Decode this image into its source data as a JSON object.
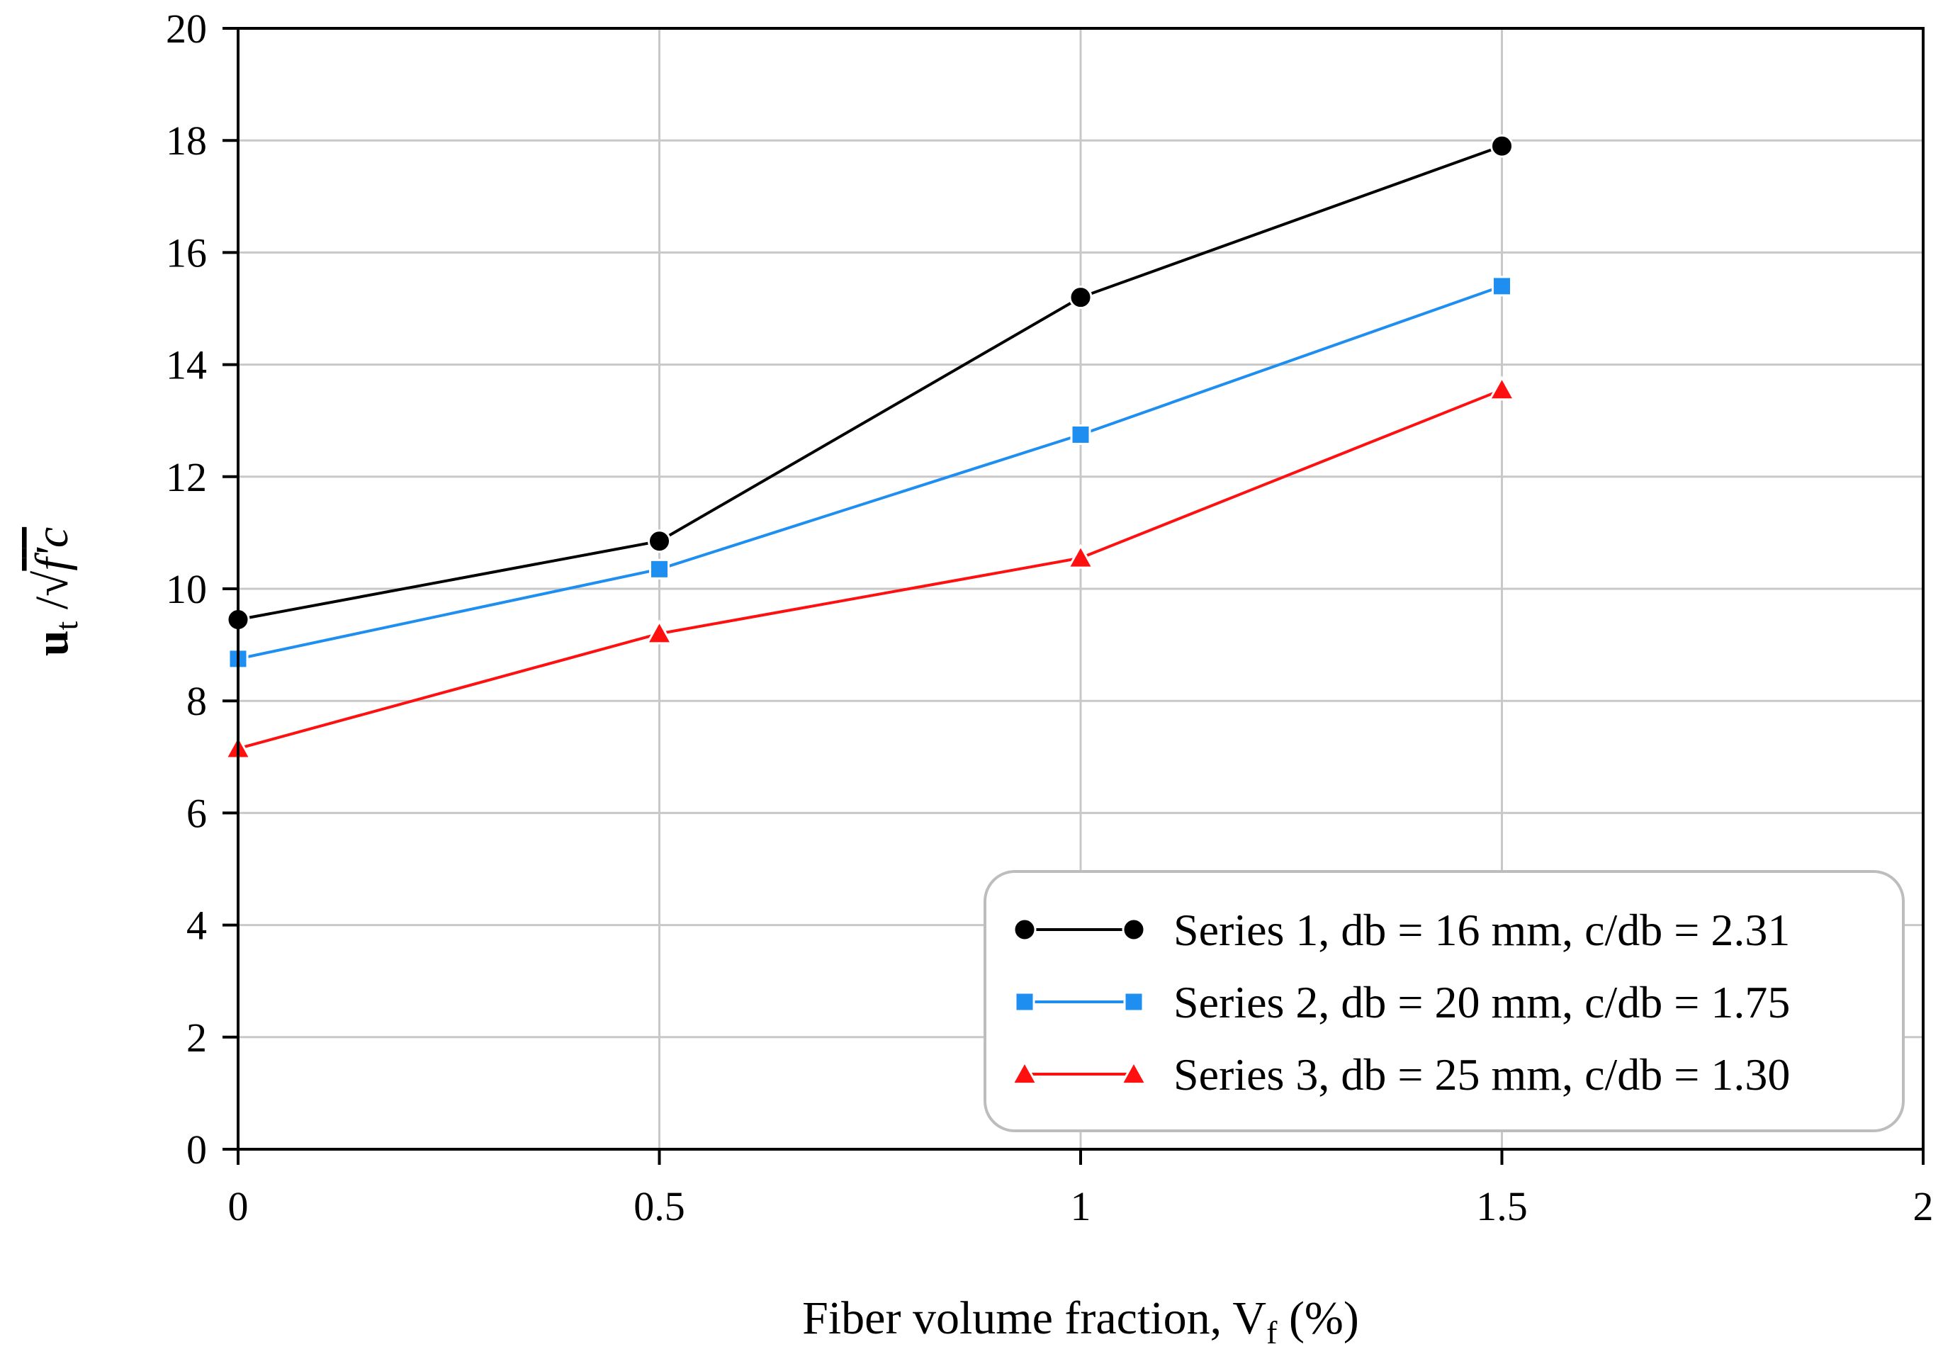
{
  "chart_data": {
    "type": "line",
    "title": "",
    "x": [
      0,
      0.5,
      1,
      1.5
    ],
    "xlabel": "Fiber volume fraction, Vf (%)",
    "xlabel_parts": {
      "main": "Fiber volume fraction, V",
      "sub": "f",
      "tail": " (%)"
    },
    "ylabel": "ut /√f'c",
    "ylabel_parts": {
      "u": "u",
      "t": "t",
      "slash": " /",
      "radical": "√",
      "f": "f",
      "c": "c"
    },
    "xlim": [
      0,
      2
    ],
    "ylim": [
      0,
      20
    ],
    "xticks": [
      0,
      0.5,
      1,
      1.5,
      2
    ],
    "xtick_labels": [
      "0",
      "0.5",
      "1",
      "1.5",
      "2"
    ],
    "yticks": [
      0,
      2,
      4,
      6,
      8,
      10,
      12,
      14,
      16,
      18,
      20
    ],
    "ytick_labels": [
      "0",
      "2",
      "4",
      "6",
      "8",
      "10",
      "12",
      "14",
      "16",
      "18",
      "20"
    ],
    "grid": true,
    "legend_position": "bottom-right",
    "series": [
      {
        "name": "Series 1, db = 16 mm, c/db = 2.31",
        "values": [
          9.45,
          10.85,
          15.2,
          17.9
        ],
        "color": "#000000",
        "marker": "circle"
      },
      {
        "name": "Series 2, db = 20 mm, c/db = 1.75",
        "values": [
          8.75,
          10.35,
          12.75,
          15.4
        ],
        "color": "#1e8ff0",
        "marker": "square"
      },
      {
        "name": "Series 3, db = 25 mm, c/db = 1.30",
        "values": [
          7.15,
          9.2,
          10.55,
          13.55
        ],
        "color": "#ff1010",
        "marker": "triangle"
      }
    ]
  }
}
